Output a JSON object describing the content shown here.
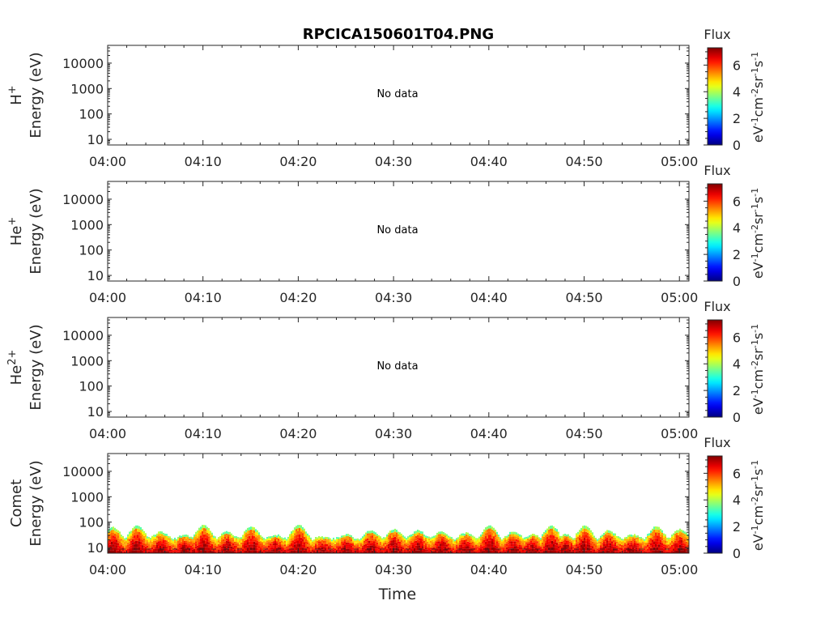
{
  "title": "RPCICA150601T04.PNG",
  "xlabel": "Time",
  "time_ticks": [
    "04:00",
    "04:10",
    "04:20",
    "04:30",
    "04:40",
    "04:50",
    "05:00"
  ],
  "energy_ticks": [
    "10",
    "100",
    "1000",
    "10000"
  ],
  "energy_label": "Energy (eV)",
  "colorbar": {
    "title": "Flux",
    "ticks": [
      "0",
      "2",
      "4",
      "6"
    ],
    "unit": "eV-1cm-2sr-1s-1",
    "colormap": "jet",
    "range": [
      0,
      7.3
    ]
  },
  "chart_data": [
    {
      "type": "heatmap",
      "species": "H",
      "species_superscript": "+",
      "ylabel": "Energy (eV)",
      "annotation": "No data",
      "xlim": [
        "04:00",
        "05:01"
      ],
      "ylim": [
        6,
        50000
      ],
      "yscale": "log"
    },
    {
      "type": "heatmap",
      "species": "He",
      "species_superscript": "+",
      "ylabel": "Energy (eV)",
      "annotation": "No data",
      "xlim": [
        "04:00",
        "05:01"
      ],
      "ylim": [
        6,
        50000
      ],
      "yscale": "log"
    },
    {
      "type": "heatmap",
      "species": "He",
      "species_superscript": "2+",
      "ylabel": "Energy (eV)",
      "annotation": "No data",
      "xlim": [
        "04:00",
        "05:01"
      ],
      "ylim": [
        6,
        50000
      ],
      "yscale": "log"
    },
    {
      "type": "heatmap",
      "species": "Comet",
      "species_superscript": "",
      "ylabel": "Energy (eV)",
      "annotation": "",
      "xlim": [
        "04:00",
        "05:01"
      ],
      "ylim": [
        6,
        50000
      ],
      "yscale": "log",
      "flux_peaks_minutes": [
        0.5,
        3.0,
        5.5,
        8.0,
        10.0,
        12.5,
        15.0,
        17.5,
        20.0,
        22.5,
        25.0,
        27.5,
        30.0,
        32.5,
        35.0,
        37.5,
        40.0,
        42.5,
        44.5,
        46.5,
        48.0,
        50.0,
        52.5,
        55.0,
        57.5,
        60.0
      ],
      "flux_peak_energy_ev": [
        60,
        70,
        40,
        30,
        75,
        40,
        65,
        30,
        75,
        25,
        30,
        45,
        50,
        45,
        40,
        35,
        70,
        40,
        30,
        70,
        30,
        70,
        45,
        30,
        65,
        50
      ],
      "flux_range": [
        3,
        7
      ]
    }
  ]
}
